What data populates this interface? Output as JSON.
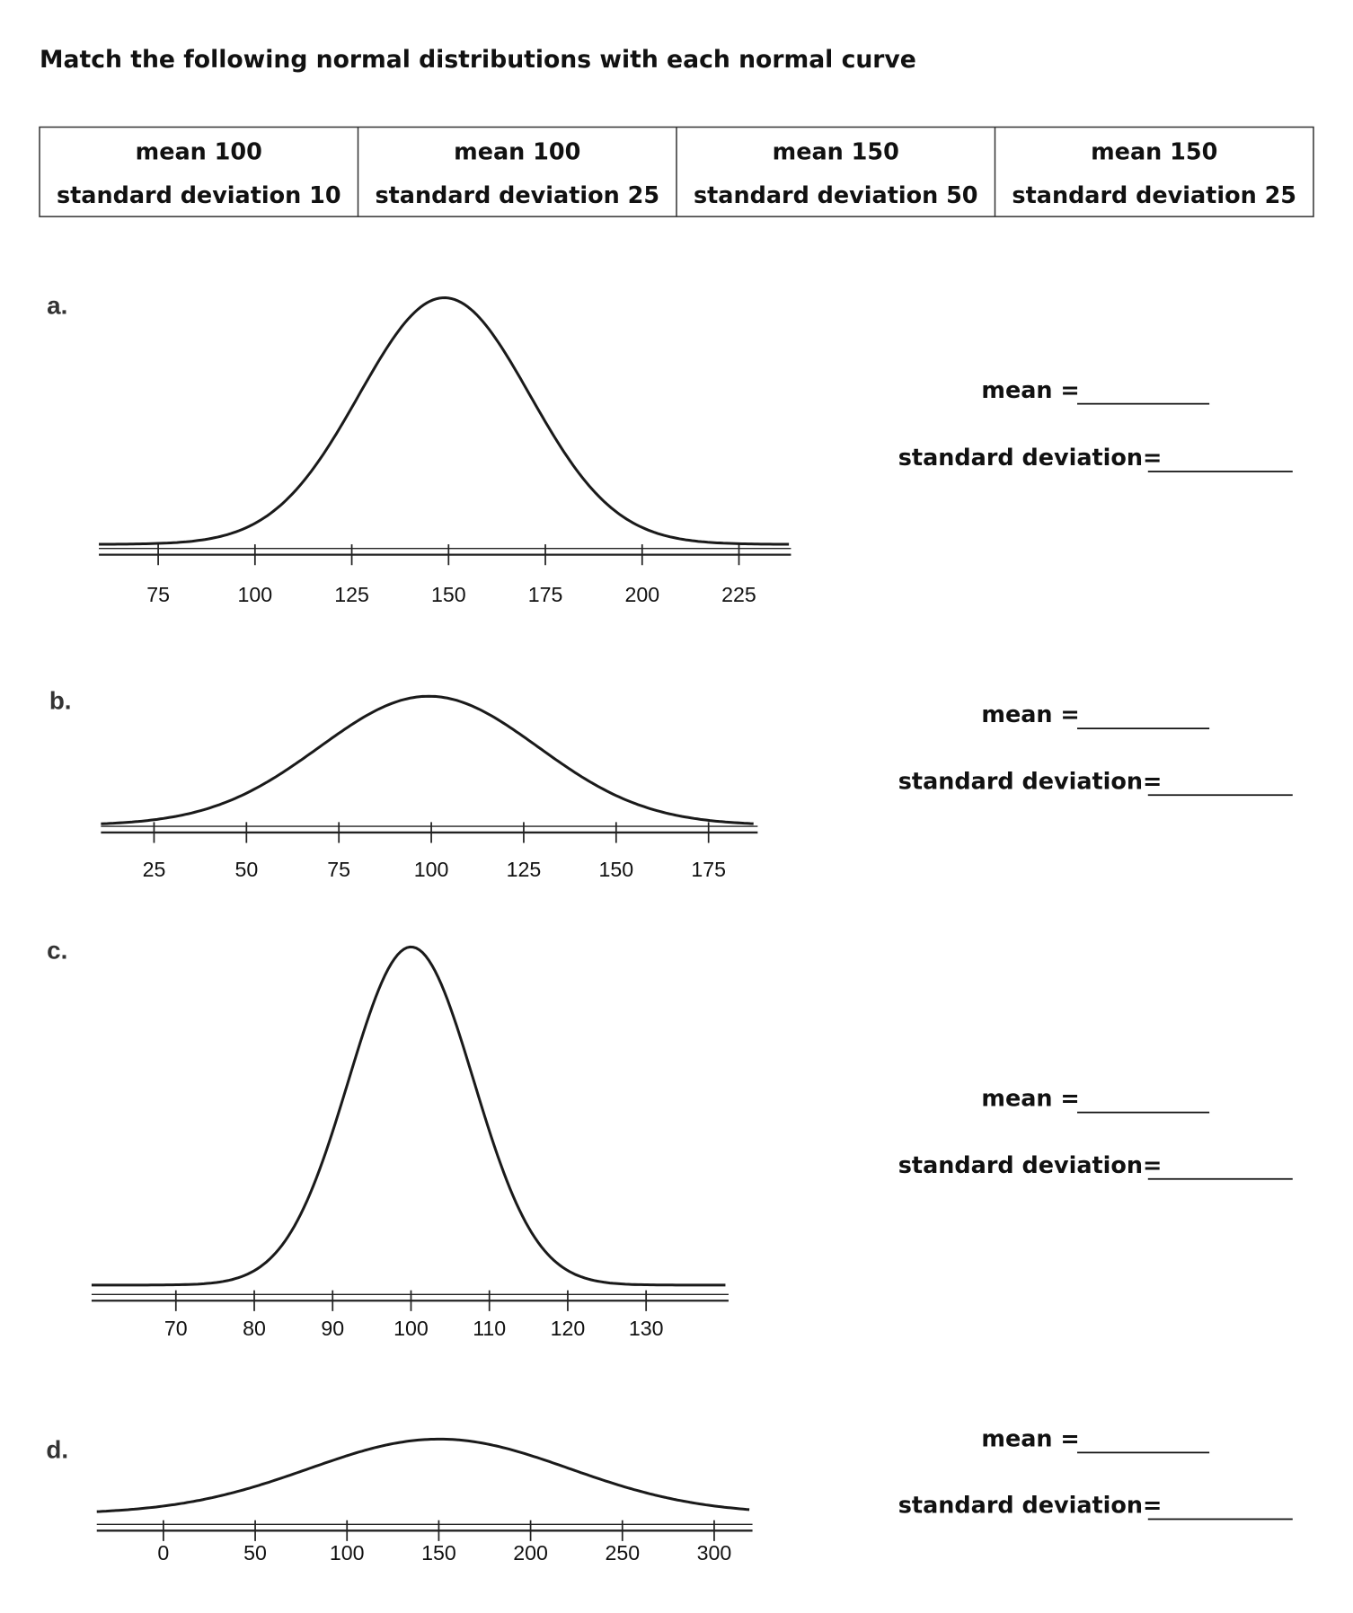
{
  "title": "Match the following normal distributions with each normal curve",
  "table": {
    "cells": [
      [
        "mean 100",
        "standard deviation 10"
      ],
      [
        "mean 100",
        "standard deviation 25"
      ],
      [
        "mean 150",
        "standard deviation 50"
      ],
      [
        "mean 150",
        "standard deviation 25"
      ]
    ]
  },
  "problems": [
    {
      "label": "a.",
      "ticks": [
        75,
        100,
        125,
        150,
        175,
        200,
        225
      ],
      "mean_label": "mean =",
      "sd_label": "standard deviation="
    },
    {
      "label": "b.",
      "ticks": [
        25,
        50,
        75,
        100,
        125,
        150,
        175
      ],
      "mean_label": "mean =",
      "sd_label": "standard deviation="
    },
    {
      "label": "c.",
      "ticks": [
        70,
        80,
        90,
        100,
        110,
        120,
        130
      ],
      "mean_label": "mean =",
      "sd_label": "standard deviation="
    },
    {
      "label": "d.",
      "ticks": [
        0,
        50,
        100,
        150,
        200,
        250,
        300
      ],
      "mean_label": "mean =",
      "sd_label": "standard deviation="
    }
  ]
}
